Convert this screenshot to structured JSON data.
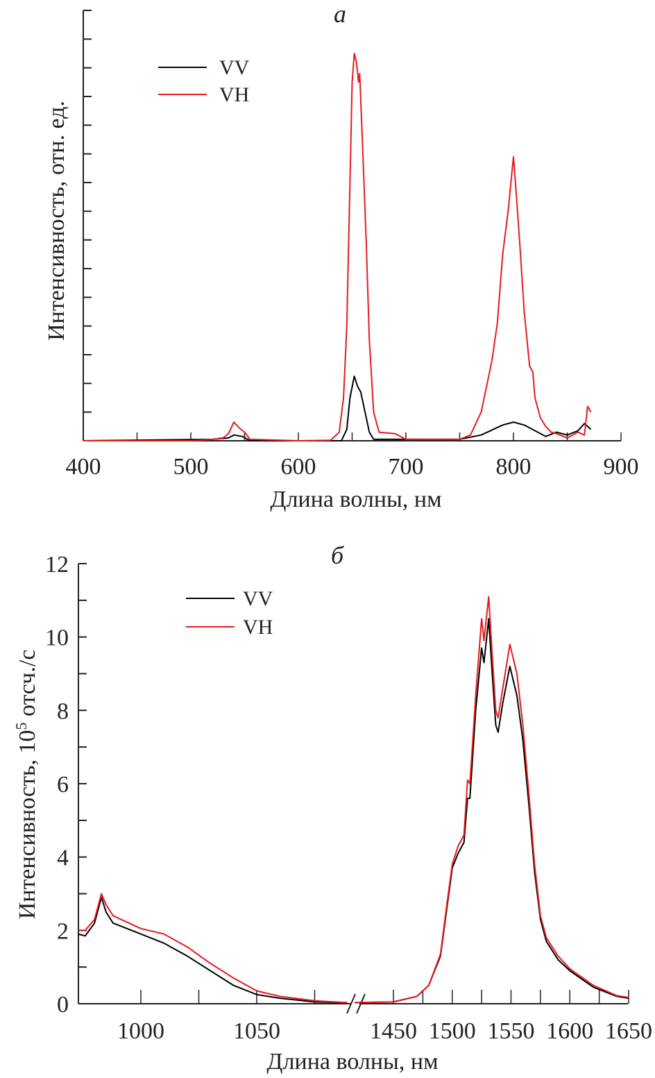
{
  "colors": {
    "vv": "#000000",
    "vh": "#e8191e",
    "axis": "#231f20"
  },
  "chart_data": [
    {
      "type": "line",
      "panel_label": "а",
      "xlabel": "Длина волны, нм",
      "ylabel": "Интенсивность, отн. ед.",
      "xlim": [
        400,
        900
      ],
      "ylim": [
        0,
        15
      ],
      "x_ticks": [
        400,
        500,
        600,
        700,
        800,
        900
      ],
      "x_tick_labels": [
        "400",
        "500",
        "600",
        "700",
        "800",
        "900"
      ],
      "y_tick_labels_shown": false,
      "legend": {
        "placement": "top-left",
        "entries": [
          "VV",
          "VH"
        ]
      },
      "series": [
        {
          "name": "VV",
          "x": [
            400,
            520,
            535,
            540,
            548,
            555,
            640,
            645,
            648,
            652,
            655,
            658,
            662,
            666,
            670,
            750,
            770,
            790,
            800,
            810,
            820,
            830,
            840,
            850,
            860,
            866,
            872
          ],
          "y": [
            0,
            0.05,
            0.1,
            0.2,
            0.15,
            0,
            0,
            0.4,
            1.5,
            2.25,
            1.9,
            1.7,
            1.0,
            0.3,
            0.05,
            0.05,
            0.2,
            0.55,
            0.65,
            0.55,
            0.35,
            0.15,
            0.3,
            0.2,
            0.35,
            0.6,
            0.4
          ]
        },
        {
          "name": "VH",
          "x": [
            400,
            500,
            520,
            530,
            535,
            540,
            545,
            550,
            555,
            600,
            630,
            638,
            642,
            645,
            648,
            650,
            652,
            654,
            656,
            657,
            660,
            663,
            666,
            670,
            675,
            690,
            700,
            750,
            760,
            770,
            780,
            785,
            790,
            795,
            800,
            803,
            806,
            810,
            815,
            818,
            820,
            825,
            830,
            835,
            840,
            850,
            860,
            866,
            869,
            872
          ],
          "y": [
            0,
            0,
            0.05,
            0.1,
            0.25,
            0.65,
            0.45,
            0.3,
            0.05,
            0,
            0.02,
            0.3,
            1.5,
            4,
            9,
            12.5,
            13.5,
            13.2,
            12.5,
            12.8,
            10,
            7,
            3.5,
            1,
            0.3,
            0.25,
            0.05,
            0.05,
            0.2,
            1,
            2.8,
            4.1,
            6.5,
            8,
            9.9,
            8.4,
            6.8,
            4.5,
            2.6,
            2.4,
            1.5,
            0.8,
            0.5,
            0.3,
            0.25,
            0.1,
            0.3,
            0.2,
            1.2,
            1.0
          ]
        }
      ]
    },
    {
      "type": "line",
      "panel_label": "б",
      "xlabel": "Длина волны, нм",
      "ylabel": "Интенсивность, 10",
      "ylabel_exponent": "5",
      "ylabel_suffix": " отсч./с",
      "x_break": [
        1089,
        1417
      ],
      "xlim_left": [
        973,
        1089
      ],
      "xlim_right": [
        1417,
        1650
      ],
      "ylim": [
        0,
        12
      ],
      "x_tick_labels": [
        "1000",
        "1050",
        "1450",
        "1500",
        "1550",
        "1600",
        "1650"
      ],
      "x_tick_values": [
        1000,
        1050,
        1450,
        1500,
        1550,
        1600,
        1650
      ],
      "y_tick_labels": [
        "0",
        "2",
        "4",
        "6",
        "8",
        "10",
        "12"
      ],
      "y_tick_values": [
        0,
        2,
        4,
        6,
        8,
        10,
        12
      ],
      "legend": {
        "placement": "top-left",
        "entries": [
          "VV",
          "VH"
        ]
      },
      "series": [
        {
          "name": "VV",
          "x": [
            973,
            976,
            980,
            983,
            985,
            988,
            1000,
            1010,
            1020,
            1030,
            1040,
            1050,
            1060,
            1075,
            1089,
            1417,
            1450,
            1470,
            1480,
            1490,
            1495,
            1500,
            1505,
            1510,
            1513,
            1515,
            1520,
            1525,
            1527,
            1531,
            1534,
            1537,
            1539,
            1543,
            1549,
            1555,
            1560,
            1565,
            1570,
            1575,
            1580,
            1590,
            1600,
            1620,
            1640,
            1650
          ],
          "y": [
            1.9,
            1.85,
            2.2,
            2.9,
            2.5,
            2.2,
            1.9,
            1.65,
            1.3,
            0.9,
            0.5,
            0.25,
            0.15,
            0.05,
            0.03,
            0.03,
            0.05,
            0.2,
            0.5,
            1.3,
            2.5,
            3.7,
            4.1,
            4.4,
            5.6,
            5.6,
            8.0,
            9.7,
            9.3,
            10.5,
            9.0,
            7.6,
            7.4,
            8.2,
            9.2,
            8.4,
            7.2,
            5.5,
            3.6,
            2.3,
            1.7,
            1.2,
            0.9,
            0.45,
            0.2,
            0.15
          ]
        },
        {
          "name": "VH",
          "x": [
            973,
            976,
            980,
            983,
            985,
            988,
            1000,
            1010,
            1020,
            1030,
            1040,
            1050,
            1060,
            1075,
            1089,
            1417,
            1450,
            1470,
            1480,
            1490,
            1495,
            1500,
            1505,
            1510,
            1513,
            1515,
            1520,
            1525,
            1527,
            1531,
            1534,
            1537,
            1539,
            1543,
            1549,
            1555,
            1560,
            1565,
            1570,
            1575,
            1580,
            1590,
            1600,
            1620,
            1640,
            1650
          ],
          "y": [
            2.0,
            2.0,
            2.3,
            3.0,
            2.7,
            2.4,
            2.05,
            1.9,
            1.55,
            1.1,
            0.7,
            0.35,
            0.2,
            0.08,
            0.03,
            0.03,
            0.05,
            0.2,
            0.5,
            1.35,
            2.6,
            3.8,
            4.3,
            4.6,
            6.1,
            6.0,
            8.4,
            10.5,
            9.9,
            11.1,
            9.5,
            8.0,
            7.8,
            8.6,
            9.8,
            9.0,
            7.6,
            5.8,
            3.8,
            2.4,
            1.8,
            1.3,
            0.95,
            0.5,
            0.22,
            0.17
          ]
        }
      ]
    }
  ]
}
